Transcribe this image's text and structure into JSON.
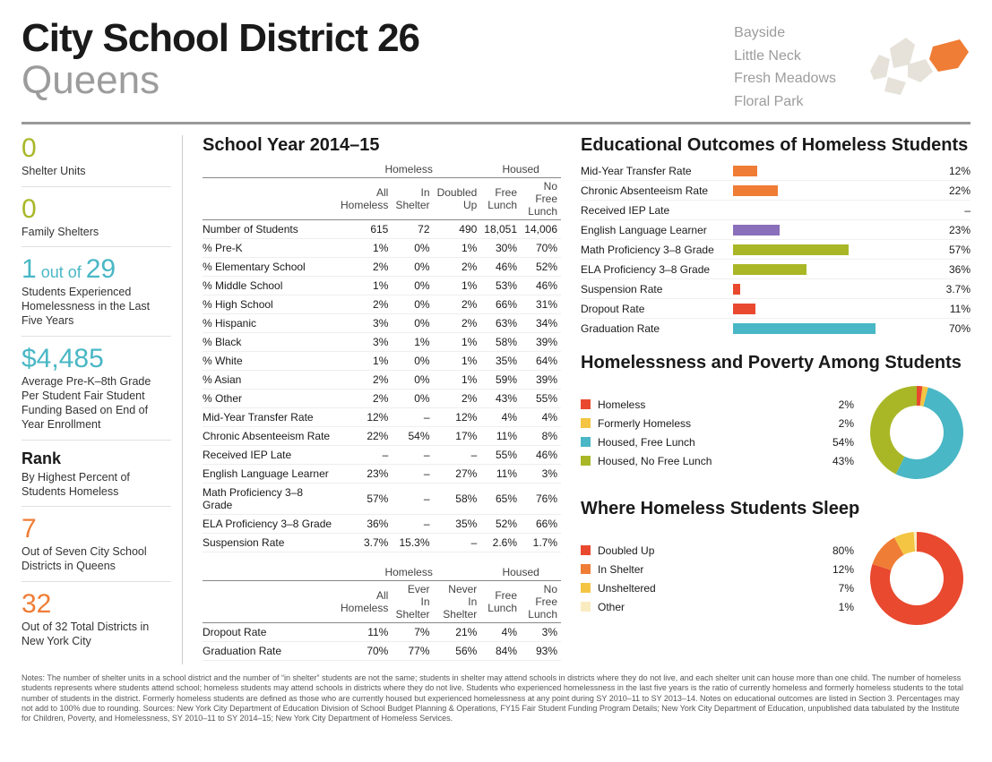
{
  "header": {
    "title": "City School District 26",
    "borough": "Queens",
    "neighborhoods": [
      "Bayside",
      "Little Neck",
      "Fresh Meadows",
      "Floral Park"
    ]
  },
  "sidebar": {
    "shelter_units": {
      "value": "0",
      "label": "Shelter Units",
      "color": "c-olive"
    },
    "family_shelters": {
      "value": "0",
      "label": "Family Shelters",
      "color": "c-olive"
    },
    "ratio": {
      "num": "1",
      "mid": " out of ",
      "den": "29",
      "label": "Students Experienced Homelessness in the Last Five Years",
      "color": "c-teal"
    },
    "funding": {
      "value": "$4,485",
      "label": "Average Pre-K–8th Grade Per Student Fair Student Funding Based on End of Year Enrollment",
      "color": "c-teal"
    },
    "rank_heading": "Rank",
    "rank_sub": "By Highest Percent of Students Homeless",
    "rank_borough": {
      "value": "7",
      "label": "Out of Seven City School Districts in Queens",
      "color": "c-orange"
    },
    "rank_city": {
      "value": "32",
      "label": "Out of 32 Total Districts in New York City",
      "color": "c-orange"
    }
  },
  "table": {
    "title": "School Year 2014–15",
    "group_homeless": "Homeless",
    "group_housed": "Housed",
    "cols_a": [
      "All Homeless",
      "In Shelter",
      "Doubled Up",
      "Free Lunch",
      "No Free Lunch"
    ],
    "rows_a": [
      [
        "Number of Students",
        "615",
        "72",
        "490",
        "18,051",
        "14,006"
      ],
      [
        "% Pre-K",
        "1%",
        "0%",
        "1%",
        "30%",
        "70%"
      ],
      [
        "% Elementary School",
        "2%",
        "0%",
        "2%",
        "46%",
        "52%"
      ],
      [
        "% Middle School",
        "1%",
        "0%",
        "1%",
        "53%",
        "46%"
      ],
      [
        "% High School",
        "2%",
        "0%",
        "2%",
        "66%",
        "31%"
      ],
      [
        "% Hispanic",
        "3%",
        "0%",
        "2%",
        "63%",
        "34%"
      ],
      [
        "% Black",
        "3%",
        "1%",
        "1%",
        "58%",
        "39%"
      ],
      [
        "% White",
        "1%",
        "0%",
        "1%",
        "35%",
        "64%"
      ],
      [
        "% Asian",
        "2%",
        "0%",
        "1%",
        "59%",
        "39%"
      ],
      [
        "% Other",
        "2%",
        "0%",
        "2%",
        "43%",
        "55%"
      ],
      [
        "Mid-Year Transfer Rate",
        "12%",
        "–",
        "12%",
        "4%",
        "4%"
      ],
      [
        "Chronic Absenteeism Rate",
        "22%",
        "54%",
        "17%",
        "11%",
        "8%"
      ],
      [
        "Received IEP Late",
        "–",
        "–",
        "–",
        "55%",
        "46%"
      ],
      [
        "English Language Learner",
        "23%",
        "–",
        "27%",
        "11%",
        "3%"
      ],
      [
        "Math Proficiency 3–8 Grade",
        "57%",
        "–",
        "58%",
        "65%",
        "76%"
      ],
      [
        "ELA Proficiency 3–8 Grade",
        "36%",
        "–",
        "35%",
        "52%",
        "66%"
      ],
      [
        "Suspension Rate",
        "3.7%",
        "15.3%",
        "–",
        "2.6%",
        "1.7%"
      ]
    ],
    "cols_b": [
      "All Homeless",
      "Ever In Shelter",
      "Never In Shelter",
      "Free Lunch",
      "No Free Lunch"
    ],
    "rows_b": [
      [
        "Dropout Rate",
        "11%",
        "7%",
        "21%",
        "4%",
        "3%"
      ],
      [
        "Graduation Rate",
        "70%",
        "77%",
        "56%",
        "84%",
        "93%"
      ]
    ]
  },
  "outcomes": {
    "title": "Educational Outcomes of Homeless Students",
    "max": 100,
    "items": [
      {
        "label": "Mid-Year Transfer Rate",
        "value": 12,
        "text": "12%",
        "color": "bg-orange"
      },
      {
        "label": "Chronic Absenteeism Rate",
        "value": 22,
        "text": "22%",
        "color": "bg-orange"
      },
      {
        "label": "Received IEP Late",
        "value": 0,
        "text": "–",
        "color": "bg-orange"
      },
      {
        "label": "English Language Learner",
        "value": 23,
        "text": "23%",
        "color": "bg-purple"
      },
      {
        "label": "Math Proficiency 3–8 Grade",
        "value": 57,
        "text": "57%",
        "color": "bg-olive"
      },
      {
        "label": "ELA Proficiency 3–8 Grade",
        "value": 36,
        "text": "36%",
        "color": "bg-olive"
      },
      {
        "label": "Suspension Rate",
        "value": 3.7,
        "text": "3.7%",
        "color": "bg-red"
      },
      {
        "label": "Dropout Rate",
        "value": 11,
        "text": "11%",
        "color": "bg-red"
      },
      {
        "label": "Graduation Rate",
        "value": 70,
        "text": "70%",
        "color": "bg-teal"
      }
    ]
  },
  "poverty": {
    "title": "Homelessness and Poverty Among Students",
    "items": [
      {
        "label": "Homeless",
        "value": 2,
        "text": "2%",
        "color": "#e9492f"
      },
      {
        "label": "Formerly Homeless",
        "value": 2,
        "text": "2%",
        "color": "#f4c542"
      },
      {
        "label": "Housed, Free Lunch",
        "value": 54,
        "text": "54%",
        "color": "#49b7c5"
      },
      {
        "label": "Housed, No Free Lunch",
        "value": 43,
        "text": "43%",
        "color": "#a9b727"
      }
    ]
  },
  "sleep": {
    "title": "Where Homeless Students Sleep",
    "items": [
      {
        "label": "Doubled Up",
        "value": 80,
        "text": "80%",
        "color": "#e9492f"
      },
      {
        "label": "In Shelter",
        "value": 12,
        "text": "12%",
        "color": "#ef7d35"
      },
      {
        "label": "Unsheltered",
        "value": 7,
        "text": "7%",
        "color": "#f4c542"
      },
      {
        "label": "Other",
        "value": 1,
        "text": "1%",
        "color": "#f9ecc1"
      }
    ]
  },
  "notes": "Notes: The number of shelter units in a school district and the number of “in shelter” students are not the same; students in shelter may attend schools in districts where they do not live, and each shelter unit can house more than one child. The number of homeless students represents where students attend school; homeless students may attend schools in districts where they do not live. Students who experienced homelessness in the last five years is the ratio of currently homeless and formerly homeless students to the total number of students in the district. Formerly homeless students are defined as those who are currently housed but experienced homelessness at any point during SY 2010–11 to SY 2013–14. Notes on educational outcomes are listed in Section 3. Percentages may not add to 100% due to rounding. Sources: New York City Department of Education Division of School Budget Planning & Operations, FY15 Fair Student Funding Program Details; New York City Department of Education, unpublished data tabulated by the Institute for Children, Poverty, and Homelessness, SY 2010–11 to SY 2014–15; New York City Department of Homeless Services."
}
